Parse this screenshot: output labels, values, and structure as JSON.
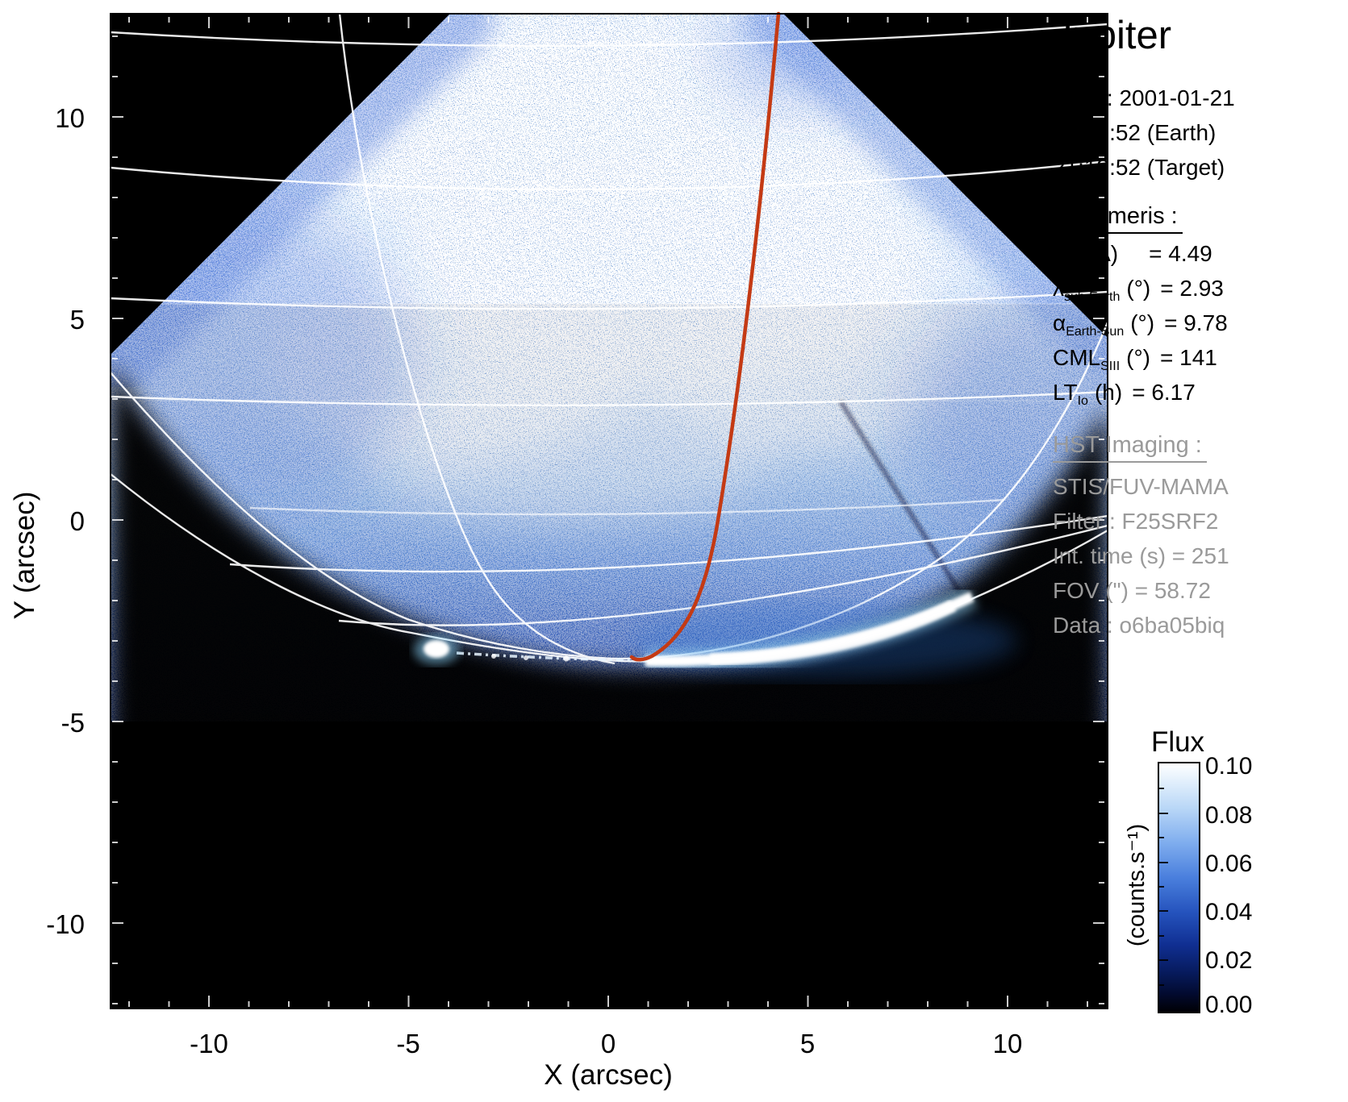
{
  "title": "Jupiter",
  "date_block": {
    "line1": "Date : 2001-01-21",
    "line2": "21:13:52 (Earth)",
    "line3": "21:13:52 (Target)"
  },
  "ephemeris": {
    "heading": "Ephemeris :",
    "rows": [
      {
        "sym": "d",
        "sub": "",
        "mid": "(UA)",
        "val": "= 4.49"
      },
      {
        "sym": "λ",
        "sub": "sub-Earth",
        "mid": "(°)",
        "val": "= 2.93"
      },
      {
        "sym": "α",
        "sub": "Earth-Sun",
        "mid": "(°)",
        "val": "= 9.78"
      },
      {
        "sym": "CML",
        "sub": "SIII",
        "mid": "(°)",
        "val": "= 141"
      },
      {
        "sym": "LT",
        "sub": "Io",
        "mid": "(h)",
        "val": "= 6.17"
      }
    ]
  },
  "hst": {
    "heading": "HST Imaging :",
    "lines": [
      "STIS/FUV-MAMA",
      "Filter : F25SRF2",
      "Int. time (s) = 251",
      "FOV (\") = 58.72",
      "Data : o6ba05biq"
    ]
  },
  "colorbar": {
    "title": "Flux",
    "unit": "(counts.s⁻¹)",
    "ticks": [
      "0.10",
      "0.08",
      "0.06",
      "0.04",
      "0.02",
      "0.00"
    ]
  },
  "axes": {
    "xlabel": "X (arcsec)",
    "ylabel": "Y (arcsec)",
    "xticks": [
      "-10",
      "-5",
      "0",
      "5",
      "10"
    ],
    "yticks": [
      "10",
      "5",
      "0",
      "-5",
      "-10"
    ]
  },
  "colors": {
    "io_track_red": "#c43a14",
    "plot_background": "#000000",
    "page_background": "#ffffff",
    "grid_white": "#ffffff",
    "info_gray": "#9a9a9a"
  },
  "chart_data": {
    "type": "heatmap",
    "title": "Jupiter",
    "xlabel": "X (arcsec)",
    "ylabel": "Y (arcsec)",
    "xlim": [
      -12.5,
      12.5
    ],
    "ylim": [
      -12.5,
      12.5
    ],
    "xticks": [
      -10,
      -5,
      0,
      5,
      10
    ],
    "yticks": [
      10,
      5,
      0,
      -5,
      -10
    ],
    "grid": false,
    "colorbar": {
      "label": "Flux",
      "unit": "(counts.s⁻¹)",
      "range": [
        0.0,
        0.1
      ],
      "ticks": [
        0.1,
        0.08,
        0.06,
        0.04,
        0.02,
        0.0
      ],
      "colormap": "black → dark blue → blue → white"
    },
    "features": [
      {
        "name": "detector-fov-wedge",
        "desc": "Bright FUV dayglow wedge widening downward, 45° edges",
        "top_corners_arcsec": [
          [
            -4.0,
            12.6
          ],
          [
            4.4,
            12.6
          ]
        ],
        "left_edge_exit_arcsec": [
          -12.5,
          4.1
        ],
        "right_edge_exit_arcsec": [
          12.5,
          4.4
        ]
      },
      {
        "name": "main-auroral-arc",
        "desc": "Bright white auroral crescent along the limb",
        "from_arcsec": [
          0.9,
          -3.5
        ],
        "to_arcsec": [
          9.4,
          -1.9
        ]
      },
      {
        "name": "secondary-auroral-spot",
        "desc": "Compact bright spot left of arc",
        "at_arcsec": [
          -4.3,
          -3.2
        ]
      },
      {
        "name": "io-footprint-track",
        "desc": "Red curved track ending at the arc",
        "from_arcsec": [
          4.3,
          12.6
        ],
        "to_arcsec": [
          0.6,
          -3.4
        ]
      },
      {
        "name": "planetary-grid",
        "desc": "White lat/lon ellipse arcs converging near south limb"
      }
    ]
  }
}
